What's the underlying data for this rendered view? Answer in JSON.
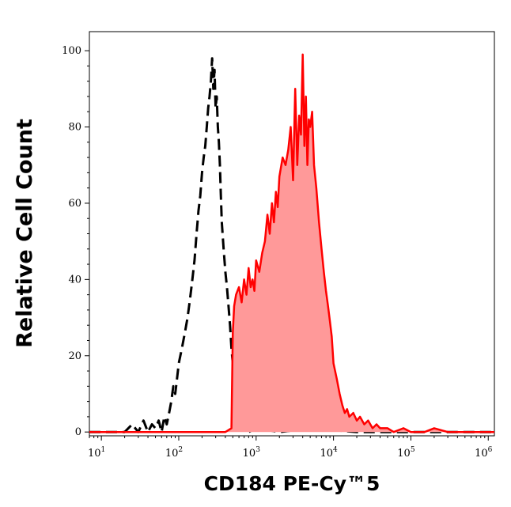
{
  "chart_data": {
    "type": "area",
    "xlabel": "CD184 PE-Cy™5",
    "ylabel": "Relative Cell Count",
    "x_scale": "log",
    "xlim": [
      7,
      1200000
    ],
    "ylim": [
      -1,
      105
    ],
    "x_tick_labels": [
      {
        "value": 10,
        "base": "10",
        "exp": "1"
      },
      {
        "value": 100,
        "base": "10",
        "exp": "2"
      },
      {
        "value": 1000,
        "base": "10",
        "exp": "3"
      },
      {
        "value": 10000,
        "base": "10",
        "exp": "4"
      },
      {
        "value": 100000,
        "base": "10",
        "exp": "5"
      },
      {
        "value": 1000000,
        "base": "10",
        "exp": "6"
      }
    ],
    "y_ticks": [
      0,
      20,
      40,
      60,
      80,
      100
    ],
    "grid": false,
    "series": [
      {
        "style": "dashed",
        "color": "#000000",
        "filled": false,
        "x": [
          7,
          20,
          25,
          30,
          35,
          40,
          45,
          50,
          55,
          60,
          65,
          70,
          75,
          80,
          85,
          90,
          95,
          100,
          110,
          120,
          130,
          140,
          150,
          160,
          170,
          180,
          190,
          200,
          210,
          220,
          230,
          240,
          250,
          260,
          270,
          280,
          290,
          300,
          310,
          320,
          330,
          340,
          350,
          360,
          380,
          400,
          420,
          440,
          460,
          480,
          500,
          520,
          540,
          560,
          600,
          650,
          800,
          1000,
          2000,
          5000,
          20000,
          100000,
          1200000
        ],
        "y": [
          0,
          0,
          2,
          0,
          3,
          0,
          2,
          1,
          3,
          0,
          4,
          2,
          5,
          8,
          12,
          10,
          14,
          18,
          22,
          26,
          30,
          35,
          40,
          45,
          52,
          58,
          62,
          68,
          72,
          75,
          80,
          85,
          88,
          92,
          98,
          90,
          95,
          85,
          88,
          80,
          76,
          70,
          62,
          55,
          48,
          42,
          38,
          33,
          28,
          22,
          18,
          14,
          10,
          6,
          3,
          1,
          0,
          1,
          0,
          1,
          0,
          0,
          0
        ]
      },
      {
        "style": "solid",
        "color": "#ff0000",
        "fill": "#ff9999",
        "filled": true,
        "x": [
          7,
          400,
          480,
          500,
          520,
          550,
          600,
          650,
          700,
          750,
          800,
          850,
          900,
          950,
          1000,
          1100,
          1200,
          1300,
          1400,
          1500,
          1600,
          1700,
          1800,
          1900,
          2000,
          2200,
          2400,
          2600,
          2800,
          3000,
          3200,
          3400,
          3600,
          3800,
          4000,
          4200,
          4400,
          4600,
          4800,
          5000,
          5300,
          5600,
          6000,
          6500,
          7000,
          7500,
          8000,
          8500,
          9000,
          9500,
          10000,
          11000,
          12000,
          13000,
          14000,
          15000,
          16000,
          18000,
          20000,
          22000,
          25000,
          28000,
          32000,
          36000,
          40000,
          50000,
          60000,
          80000,
          100000,
          150000,
          200000,
          300000,
          500000,
          1200000
        ],
        "y": [
          0,
          0,
          1,
          26,
          33,
          36,
          38,
          34,
          40,
          36,
          43,
          38,
          40,
          37,
          45,
          42,
          47,
          50,
          57,
          52,
          60,
          55,
          63,
          59,
          67,
          72,
          70,
          74,
          80,
          66,
          90,
          70,
          83,
          78,
          99,
          75,
          88,
          70,
          82,
          80,
          84,
          70,
          64,
          55,
          48,
          42,
          37,
          33,
          29,
          25,
          18,
          14,
          10,
          7,
          5,
          6,
          4,
          5,
          3,
          4,
          2,
          3,
          1,
          2,
          1,
          1,
          0,
          1,
          0,
          0,
          1,
          0,
          0,
          0
        ]
      }
    ]
  }
}
